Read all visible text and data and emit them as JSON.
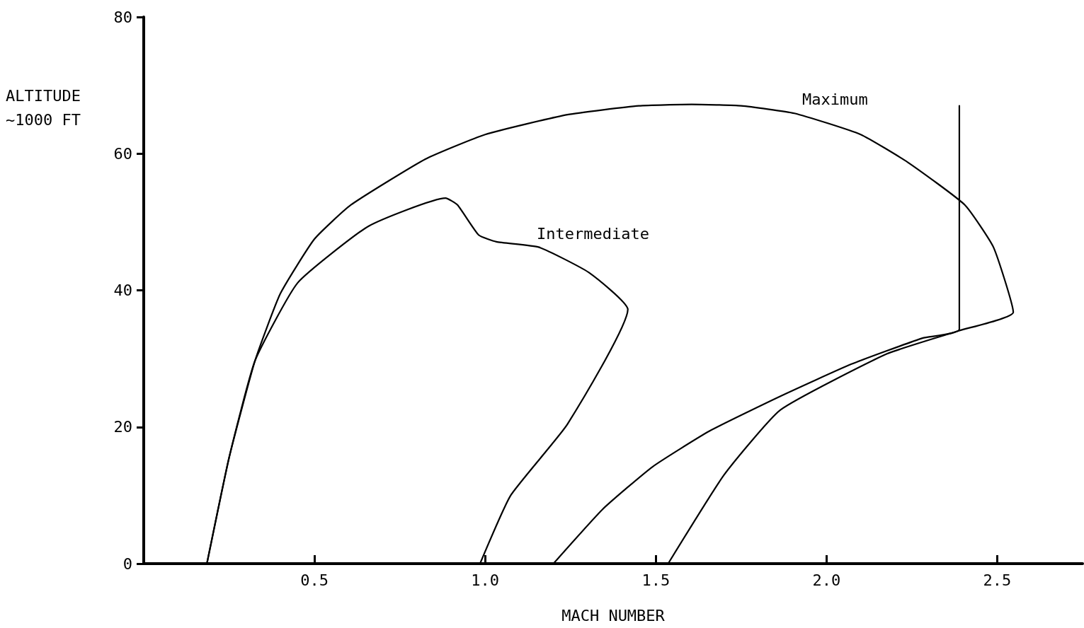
{
  "chart_data": {
    "type": "line",
    "xlabel": "MACH NUMBER",
    "ylabel": "ALTITUDE\n~1000 FT",
    "xlim": [
      0,
      2.75
    ],
    "ylim": [
      0,
      80
    ],
    "xticks": [
      {
        "value": 0.5,
        "label": "0.5"
      },
      {
        "value": 1.0,
        "label": "1.0"
      },
      {
        "value": 1.5,
        "label": "1.5"
      },
      {
        "value": 2.0,
        "label": "2.0"
      },
      {
        "value": 2.5,
        "label": "2.5"
      }
    ],
    "yticks": [
      0,
      20,
      40,
      60,
      80
    ],
    "grid": false,
    "marker": "none",
    "line_style": "solid",
    "series": [
      {
        "color": "#000000",
        "x": [
          0.185,
          0.25,
          0.326,
          0.4,
          0.5,
          0.607,
          0.825,
          1.0,
          1.241,
          1.45,
          1.605,
          1.75,
          1.906,
          2.1,
          2.239,
          2.405,
          2.489,
          2.547,
          2.389,
          2.177,
          1.865,
          1.7,
          1.536
        ],
        "values": [
          0,
          15.5,
          29.7,
          39.5,
          47.5,
          52.5,
          59.2,
          62.8,
          65.7,
          67.0,
          67.2,
          67.0,
          65.9,
          62.8,
          58.7,
          52.5,
          46.3,
          36.8,
          34.1,
          30.7,
          22.5,
          13.0,
          0
        ]
      },
      {
        "color": "#000000",
        "x": [
          0.185,
          0.25,
          0.326,
          0.451,
          0.659,
          0.884,
          0.919,
          0.981,
          1.033,
          1.158,
          1.304,
          1.418,
          1.241,
          1.075,
          0.985
        ],
        "values": [
          0,
          15.5,
          29.7,
          41.1,
          49.4,
          53.5,
          52.5,
          48.1,
          47.1,
          46.3,
          42.6,
          37.2,
          20.4,
          10.0,
          0
        ]
      },
      {
        "color": "#000000",
        "x": [
          1.2,
          1.345,
          1.491,
          1.657,
          1.865,
          2.073,
          2.281,
          2.389,
          2.389
        ],
        "values": [
          0,
          8.0,
          14.2,
          19.4,
          24.5,
          29.2,
          33.0,
          34.3,
          67.0
        ]
      }
    ],
    "annotations": [
      "Maximum",
      "Intermediate"
    ]
  }
}
